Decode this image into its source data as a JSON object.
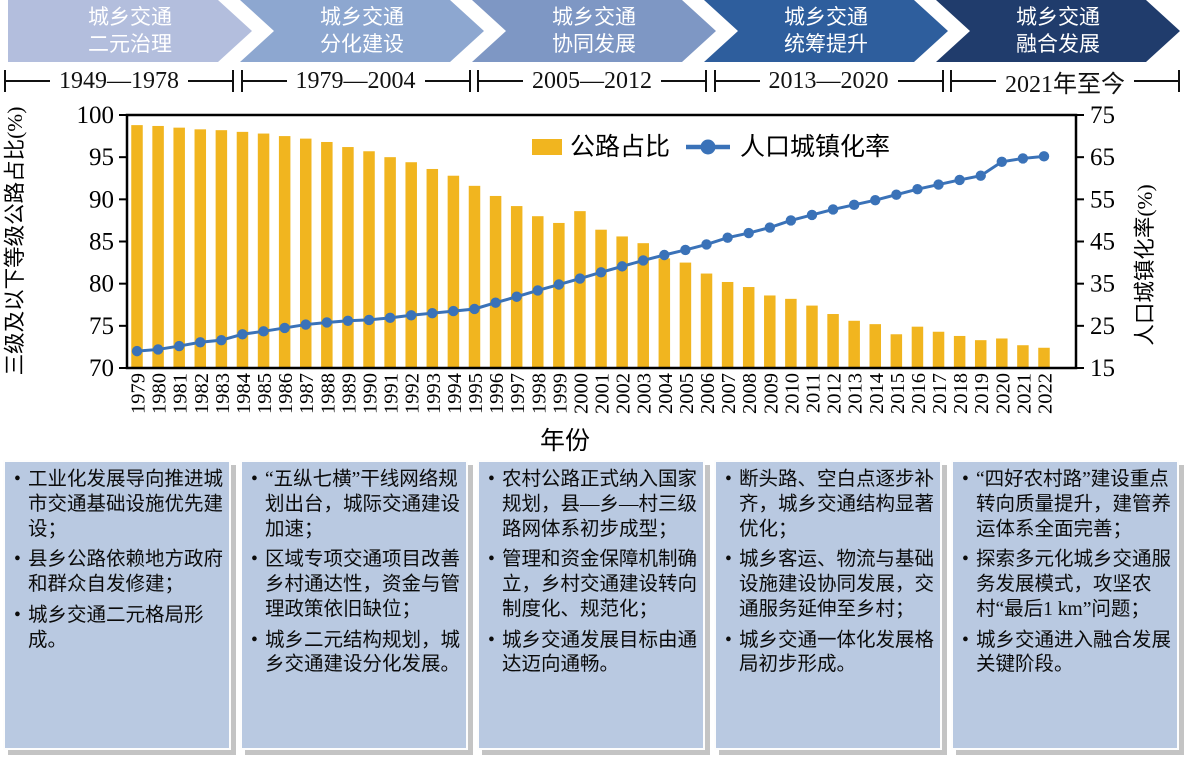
{
  "stages": [
    {
      "title_line1": "城乡交通",
      "title_line2": "二元治理",
      "period": "1949—1978",
      "color": "#b3bedd",
      "points": [
        "工业化发展导向推进城市交通基础设施优先建设；",
        "县乡公路依赖地方政府和群众自发修建；",
        "城乡交通二元格局形成。"
      ]
    },
    {
      "title_line1": "城乡交通",
      "title_line2": "分化建设",
      "period": "1979—2004",
      "color": "#8da7d0",
      "points": [
        "“五纵七横”干线网络规划出台，城际交通建设加速；",
        "区域专项交通项目改善乡村通达性，资金与管理政策依旧缺位；",
        "城乡二元结构规划，城乡交通建设分化发展。"
      ]
    },
    {
      "title_line1": "城乡交通",
      "title_line2": "协同发展",
      "period": "2005—2012",
      "color": "#7e97c4",
      "points": [
        "农村公路正式纳入国家规划，县—乡—村三级路网体系初步成型；",
        "管理和资金保障机制确立，乡村交通建设转向制度化、规范化；",
        "城乡交通发展目标由通达迈向通畅。"
      ]
    },
    {
      "title_line1": "城乡交通",
      "title_line2": "统筹提升",
      "period": "2013—2020",
      "color": "#2e5e9d",
      "points": [
        "断头路、空白点逐步补齐，城乡交通结构显著优化；",
        "城乡客运、物流与基础设施建设协同发展，交通服务延伸至乡村；",
        "城乡交通一体化发展格局初步形成。"
      ]
    },
    {
      "title_line1": "城乡交通",
      "title_line2": "融合发展",
      "period": "2021年至今",
      "color": "#203c6c",
      "points": [
        "“四好农村路”建设重点转向质量提升，建管养运体系全面完善；",
        "探索多元化城乡交通服务发展模式，攻坚农村“最后1 km”问题；",
        "城乡交通进入融合发展关键阶段。"
      ]
    }
  ],
  "chart_data": {
    "type": "bar+line",
    "x": [
      1979,
      1980,
      1981,
      1982,
      1983,
      1984,
      1985,
      1986,
      1987,
      1988,
      1989,
      1990,
      1991,
      1992,
      1993,
      1994,
      1995,
      1996,
      1997,
      1998,
      1999,
      2000,
      2001,
      2002,
      2003,
      2004,
      2005,
      2006,
      2007,
      2008,
      2009,
      2010,
      2011,
      2012,
      2013,
      2014,
      2015,
      2016,
      2017,
      2018,
      2019,
      2020,
      2021,
      2022
    ],
    "series": [
      {
        "name": "公路占比",
        "type": "bar",
        "axis": "left",
        "color": "#f1b51f",
        "values": [
          98.8,
          98.7,
          98.5,
          98.3,
          98.2,
          98.0,
          97.8,
          97.5,
          97.2,
          96.8,
          96.2,
          95.7,
          95.0,
          94.4,
          93.6,
          92.8,
          91.6,
          90.4,
          89.2,
          88.0,
          87.2,
          88.6,
          86.4,
          85.6,
          84.8,
          83.0,
          82.5,
          81.2,
          80.2,
          79.6,
          78.6,
          78.2,
          77.4,
          76.4,
          75.6,
          75.2,
          74.0,
          74.9,
          74.3,
          73.8,
          73.3,
          73.5,
          72.7,
          72.4
        ]
      },
      {
        "name": "人口城镇化率",
        "type": "line",
        "axis": "right",
        "color": "#3a72b8",
        "values": [
          19.0,
          19.4,
          20.2,
          21.1,
          21.6,
          23.0,
          23.7,
          24.5,
          25.3,
          25.8,
          26.2,
          26.4,
          26.9,
          27.5,
          28.0,
          28.5,
          29.0,
          30.5,
          31.9,
          33.4,
          34.8,
          36.2,
          37.7,
          39.1,
          40.5,
          41.8,
          43.0,
          44.3,
          45.9,
          47.0,
          48.3,
          50.0,
          51.3,
          52.6,
          53.7,
          54.8,
          56.1,
          57.4,
          58.5,
          59.6,
          60.6,
          63.9,
          64.7,
          65.2
        ]
      }
    ],
    "left_axis": {
      "label": "三级及以下等级公路占比(%)",
      "min": 70,
      "max": 100,
      "ticks": [
        70,
        75,
        80,
        85,
        90,
        95,
        100
      ]
    },
    "right_axis": {
      "label": "人口城镇化率(%)",
      "min": 15,
      "max": 75,
      "ticks": [
        15,
        25,
        35,
        45,
        55,
        65,
        75
      ]
    },
    "xlabel": "年份",
    "legend": [
      "公路占比",
      "人口城镇化率"
    ],
    "legend_position": "inside-top-center",
    "grid": false
  }
}
